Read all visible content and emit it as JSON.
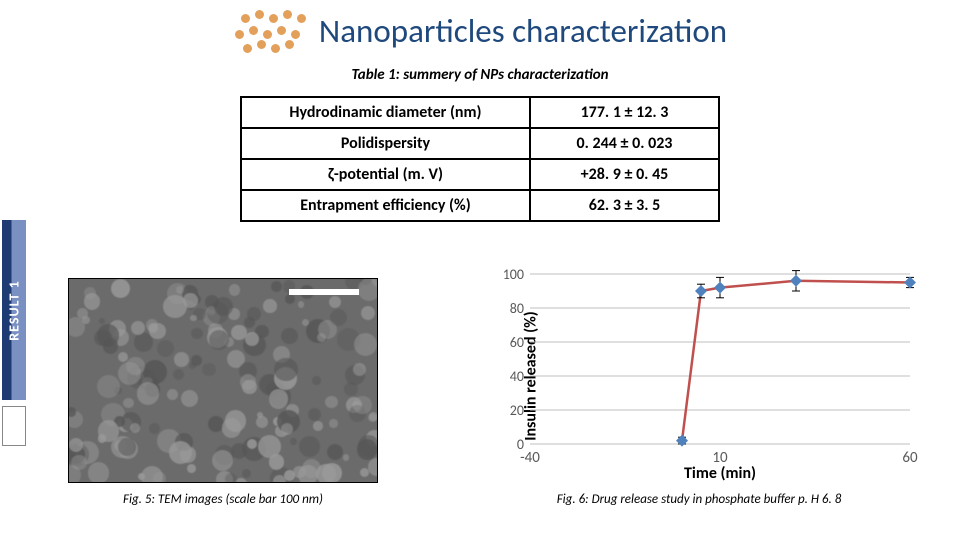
{
  "title": "Nanoparticles characterization",
  "deco_dots": {
    "color": "#e2a05a",
    "positions": [
      [
        8,
        6
      ],
      [
        22,
        2
      ],
      [
        36,
        6
      ],
      [
        50,
        2
      ],
      [
        64,
        6
      ],
      [
        2,
        22
      ],
      [
        16,
        18
      ],
      [
        30,
        22
      ],
      [
        44,
        18
      ],
      [
        58,
        22
      ],
      [
        10,
        36
      ],
      [
        24,
        32
      ],
      [
        38,
        36
      ],
      [
        52,
        32
      ]
    ]
  },
  "table": {
    "caption": "Table 1: summery of NPs characterization",
    "rows": [
      {
        "param": "Hydrodinamic diameter (nm)",
        "value": "177. 1 ± 12. 3"
      },
      {
        "param": "Polidispersity",
        "value": "0. 244 ± 0. 023"
      },
      {
        "param": "ζ-potential (m. V)",
        "value": "+28. 9 ± 0. 45"
      },
      {
        "param": "Entrapment efficiency (%)",
        "value": "62. 3 ± 3. 5"
      }
    ]
  },
  "side_label": "RESULT 1",
  "fig5": {
    "caption": "Fig. 5: TEM images (scale bar 100 nm)",
    "bg_base": "#6b6b6b",
    "speck_light": "#9a9a9a",
    "speck_dark": "#565656"
  },
  "chart": {
    "type": "line",
    "ylabel": "Insulin released (%)",
    "xlabel": "Time (min)",
    "xlim": [
      -40,
      60
    ],
    "ylim": [
      0,
      100
    ],
    "xticks": [
      -40,
      10,
      60
    ],
    "yticks": [
      0,
      20,
      40,
      60,
      80,
      100
    ],
    "ytick_fontsize": 14,
    "xtick_fontsize": 15,
    "grid_color": "#bfbfbf",
    "background_color": "#ffffff",
    "axis_color": "#808080",
    "line_color": "#c0504d",
    "line_width": 2.5,
    "marker_fill": "#4f81bd",
    "marker_size": 6,
    "errorbar_color": "#000000",
    "series": [
      {
        "x": 0,
        "y": 2,
        "err": 2
      },
      {
        "x": 5,
        "y": 90,
        "err": 4
      },
      {
        "x": 10,
        "y": 92,
        "err": 6
      },
      {
        "x": 30,
        "y": 96,
        "err": 6
      },
      {
        "x": 60,
        "y": 95,
        "err": 3
      }
    ]
  },
  "fig6_caption": "Fig. 6: Drug release study in phosphate buffer p. H 6. 8"
}
